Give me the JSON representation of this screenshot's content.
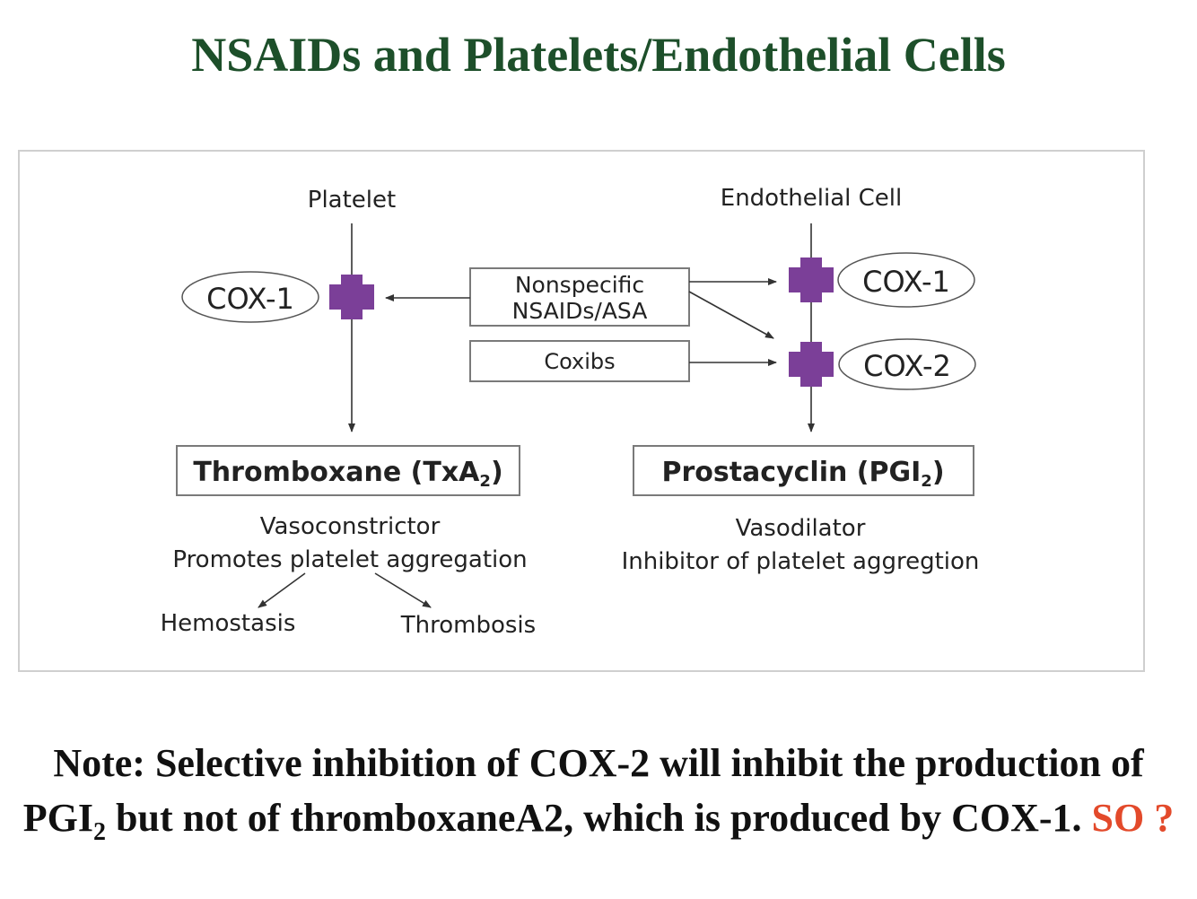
{
  "title": "NSAIDs and Platelets/Endothelial Cells",
  "diagram": {
    "platelet_label": "Platelet",
    "endothelial_label": "Endothelial Cell",
    "platelet_cox1": "COX-1",
    "endo_cox1": "COX-1",
    "endo_cox2": "COX-2",
    "nonspecific_line1": "Nonspecific",
    "nonspecific_line2": "NSAIDs/ASA",
    "coxibs": "Coxibs",
    "thromboxane_main": "Thromboxane (TxA",
    "thromboxane_sub": "2",
    "thromboxane_end": ")",
    "prostacyclin_main": "Prostacyclin (PGI",
    "prostacyclin_sub": "2",
    "prostacyclin_end": ")",
    "txa_effect1": "Vasoconstrictor",
    "txa_effect2": "Promotes platelet aggregation",
    "pgi_effect1": "Vasodilator",
    "pgi_effect2": "Inhibitor of platelet aggregtion",
    "hemostasis": "Hemostasis",
    "thrombosis": "Thrombosis"
  },
  "note": {
    "part1": "Note: Selective inhibition of COX-2 will inhibit the production of PGI",
    "sub": "2",
    "part2": " but not of thromboxaneA2, which is produced by COX-1. ",
    "so": "SO ?"
  },
  "colors": {
    "title": "#1d4f2a",
    "inhibitor_mark": "#7b3f98",
    "so_highlight": "#e34a2b"
  }
}
